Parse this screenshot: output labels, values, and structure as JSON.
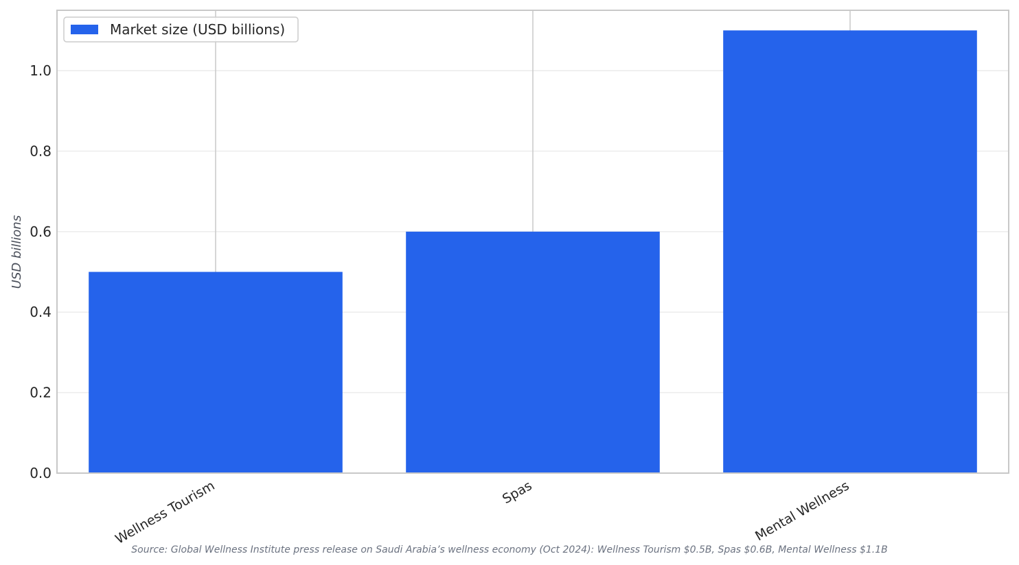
{
  "chart_data": {
    "type": "bar",
    "categories": [
      "Wellness Tourism",
      "Spas",
      "Mental Wellness"
    ],
    "series": [
      {
        "name": "Market size (USD billions)",
        "values": [
          0.5,
          0.6,
          1.1
        ],
        "color": "#2563eb"
      }
    ],
    "title": "",
    "xlabel": "",
    "ylabel": "USD billions",
    "ylim": [
      0,
      1.15
    ],
    "yticks": [
      0.0,
      0.2,
      0.4,
      0.6,
      0.8,
      1.0
    ],
    "ytick_labels": [
      "0.0",
      "0.2",
      "0.4",
      "0.6",
      "0.8",
      "1.0"
    ],
    "grid": true,
    "legend_position": "top-left",
    "source_note": "Source: Global Wellness Institute press release on Saudi Arabia’s wellness economy (Oct 2024): Wellness Tourism $0.5B, Spas $0.6B, Mental Wellness $1.1B"
  }
}
